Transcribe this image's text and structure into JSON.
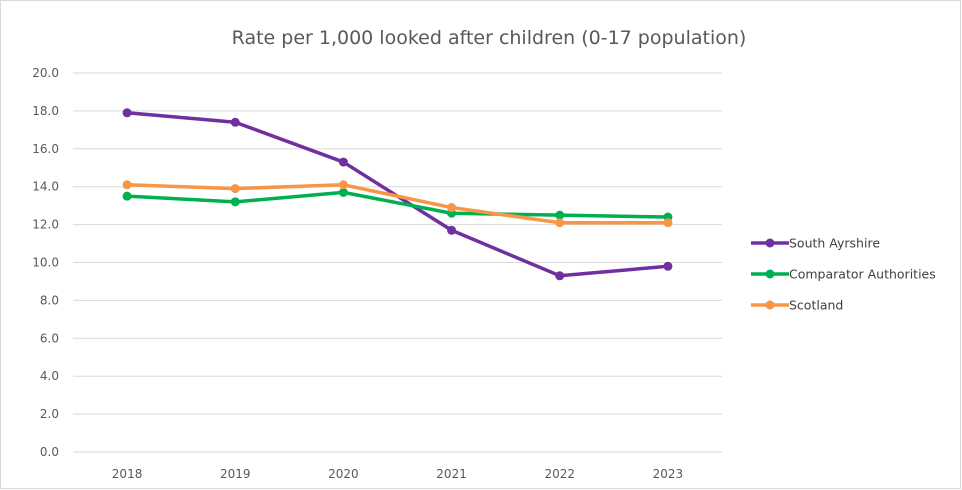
{
  "chart_data": {
    "type": "line",
    "title": "Rate per 1,000 looked after children (0-17 population)",
    "categories": [
      "2018",
      "2019",
      "2020",
      "2021",
      "2022",
      "2023"
    ],
    "ylim": [
      0,
      20
    ],
    "ytick_step": 2,
    "ytick_labels": [
      "0.0",
      "2.0",
      "4.0",
      "6.0",
      "8.0",
      "10.0",
      "12.0",
      "14.0",
      "16.0",
      "18.0",
      "20.0"
    ],
    "grid": true,
    "legend_position": "right",
    "series": [
      {
        "name": "South Ayrshire",
        "color": "#7030a0",
        "values": [
          17.9,
          17.4,
          15.3,
          11.7,
          9.3,
          9.8
        ]
      },
      {
        "name": "Comparator Authorities",
        "color": "#00b050",
        "values": [
          13.5,
          13.2,
          13.7,
          12.6,
          12.5,
          12.4
        ]
      },
      {
        "name": "Scotland",
        "color": "#f79646",
        "values": [
          14.1,
          13.9,
          14.1,
          12.9,
          12.1,
          12.1
        ]
      }
    ]
  }
}
